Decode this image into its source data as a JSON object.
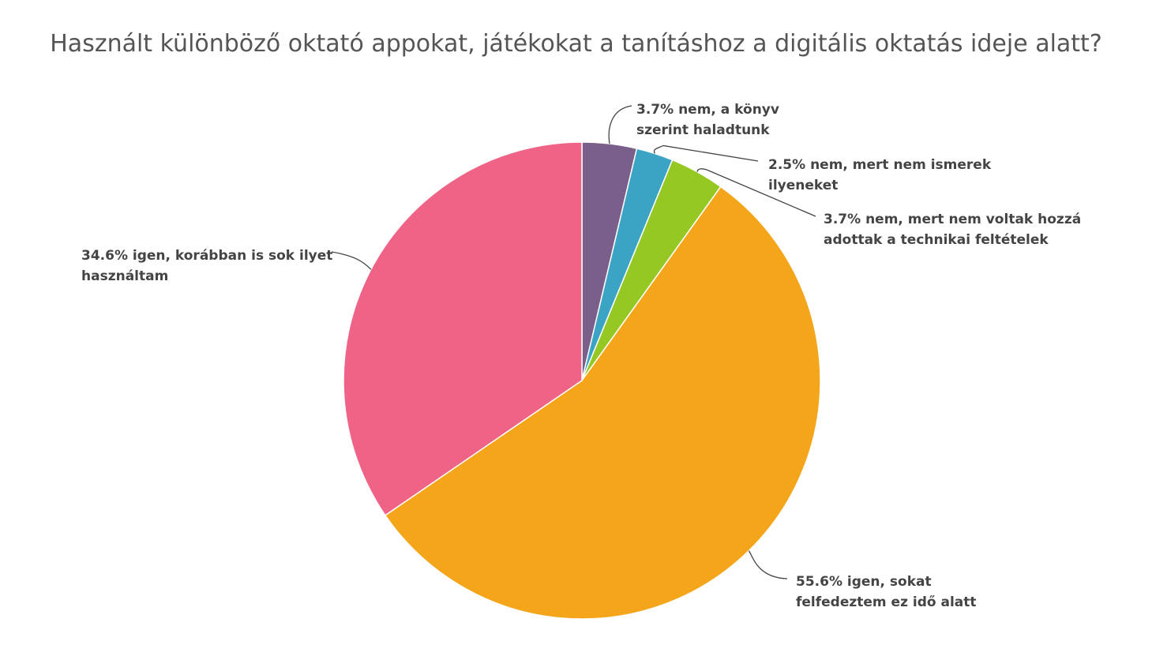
{
  "chart_data": {
    "type": "pie",
    "title": "Használt különböző oktató appokat, játékokat a tanításhoz a digitális oktatás ideje alatt?",
    "slices": [
      {
        "label": "nem, a könyv szerint haladtunk",
        "value": 3.7,
        "value_label": "3.7%",
        "color": "#7b5f8b"
      },
      {
        "label": "nem, mert nem ismerek ilyeneket",
        "value": 2.5,
        "value_label": "2.5%",
        "color": "#3ba3c4"
      },
      {
        "label": "nem, mert nem voltak hozzá adottak a technikai feltételek",
        "value": 3.7,
        "value_label": "3.7%",
        "color": "#95c823"
      },
      {
        "label": "igen, sokat felfedeztem ez idő alatt",
        "value": 55.6,
        "value_label": "55.6%",
        "color": "#f4a519"
      },
      {
        "label": "igen, korábban is sok ilyet használtam",
        "value": 34.6,
        "value_label": "34.6%",
        "color": "#ef6386"
      }
    ],
    "start_angle_deg": 0,
    "direction": "clockwise"
  }
}
